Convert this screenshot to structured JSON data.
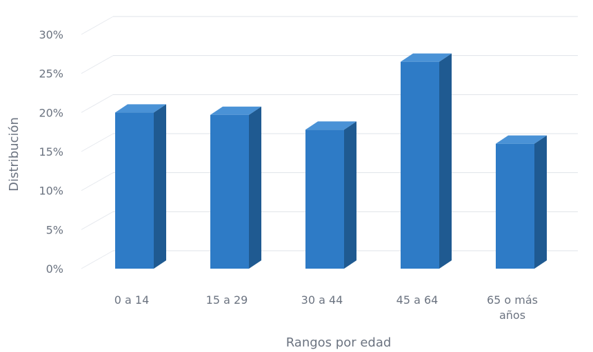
{
  "chart_data": {
    "type": "bar",
    "style": "3d-column",
    "categories": [
      "0 a 14",
      "15 a 29",
      "30 a 44",
      "45 a 64",
      "65 o más años"
    ],
    "category_lines": [
      [
        "0 a 14"
      ],
      [
        "15 a 29"
      ],
      [
        "30 a 44"
      ],
      [
        "45 a 64"
      ],
      [
        "65 o más",
        "años"
      ]
    ],
    "values": [
      20,
      19.7,
      17.8,
      26.5,
      16
    ],
    "xlabel": "Rangos por edad",
    "ylabel": "Distribución",
    "ylim": [
      0,
      30
    ],
    "yticks": [
      "0%",
      "5%",
      "10%",
      "15%",
      "20%",
      "25%",
      "30%"
    ],
    "ytick_values": [
      0,
      5,
      10,
      15,
      20,
      25,
      30
    ],
    "grid": true,
    "legend": "none",
    "colors": {
      "bar_front": "#2e7bc6",
      "bar_side": "#1f5a91",
      "bar_top": "#4a92d6",
      "text": "#6b7380",
      "grid": "#dfe3e8"
    }
  }
}
